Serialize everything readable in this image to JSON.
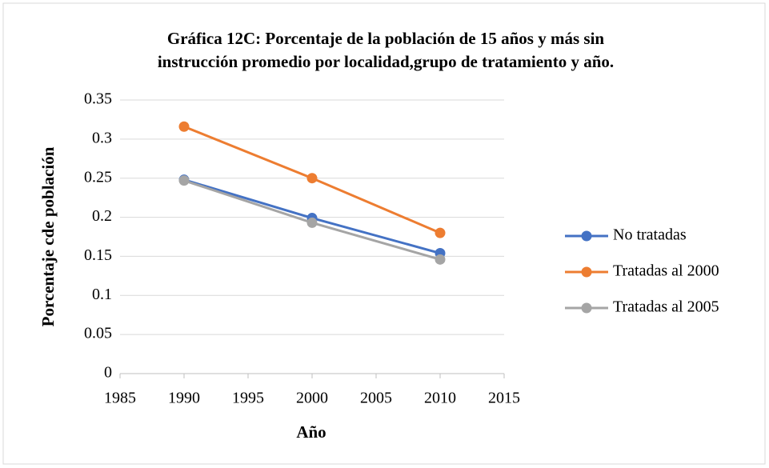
{
  "chart_data": {
    "type": "line",
    "title": [
      "Gráfica 12C: Porcentaje de la población de 15 años y más sin",
      "instrucción promedio por localidad,grupo de tratamiento y año."
    ],
    "xlabel": "Año",
    "ylabel": "Porcentaje cde población",
    "x": [
      1990,
      2000,
      2010
    ],
    "series": [
      {
        "name": "No tratadas",
        "color": "#4472c4",
        "values": [
          0.248,
          0.199,
          0.154
        ]
      },
      {
        "name": "Tratadas al 2000",
        "color": "#ed7d31",
        "values": [
          0.316,
          0.25,
          0.18
        ]
      },
      {
        "name": "Tratadas al 2005",
        "color": "#a5a5a5",
        "values": [
          0.247,
          0.193,
          0.146
        ]
      }
    ],
    "xlim": [
      1985,
      2015
    ],
    "xticks": [
      1985,
      1990,
      1995,
      2000,
      2005,
      2010,
      2015
    ],
    "ylim": [
      0,
      0.35
    ],
    "yticks": [
      0,
      0.05,
      0.1,
      0.15,
      0.2,
      0.25,
      0.3,
      0.35
    ],
    "grid": true,
    "legend": "right"
  }
}
